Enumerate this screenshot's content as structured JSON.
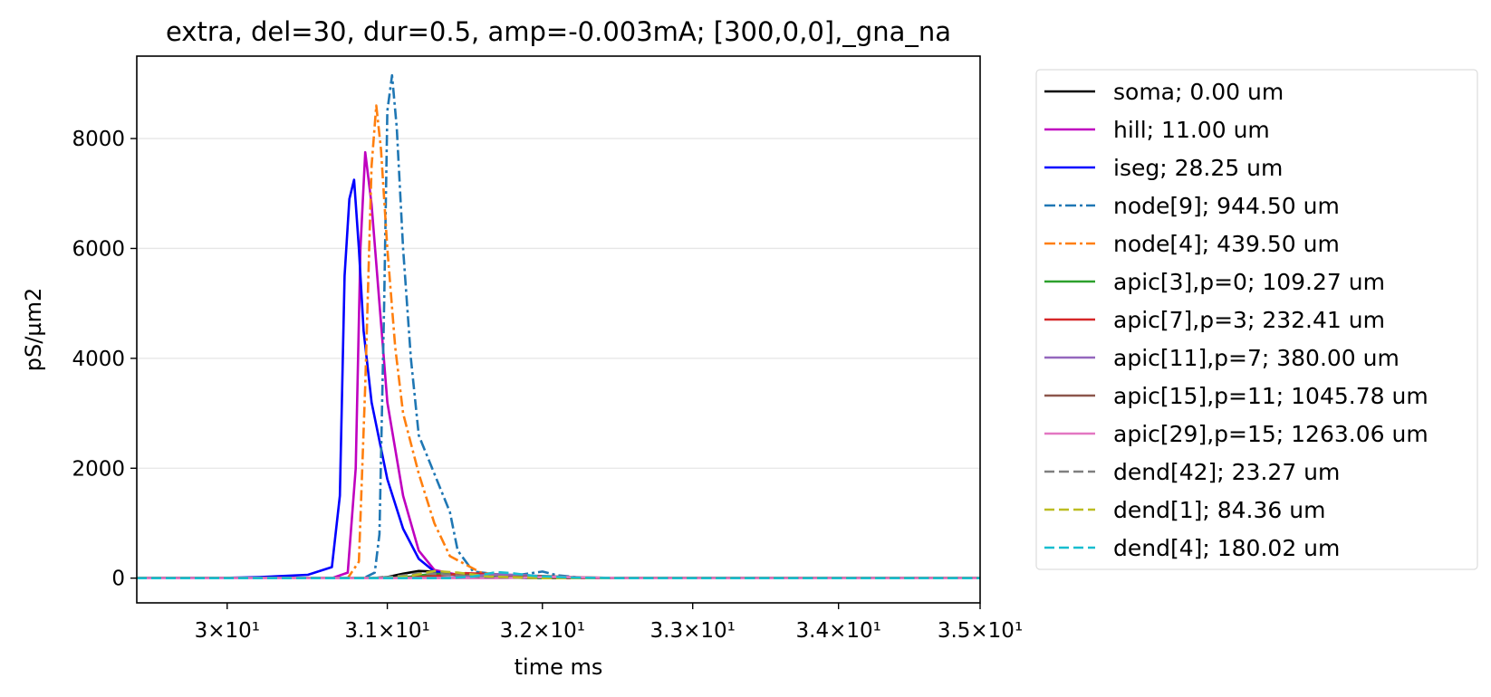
{
  "chart_data": {
    "type": "line",
    "title": "extra, del=30, dur=0.5, amp=-0.003mA; [300,0,0],_gna_na",
    "xlabel": "time ms",
    "ylabel": "pS/µm2",
    "xscale": "log",
    "xlim": [
      29.45,
      35.0
    ],
    "ylim": [
      -450,
      9500
    ],
    "xticks": [
      {
        "value": 30,
        "label": "3×10¹"
      },
      {
        "value": 31,
        "label": "3.1×10¹"
      },
      {
        "value": 32,
        "label": "3.2×10¹"
      },
      {
        "value": 33,
        "label": "3.3×10¹"
      },
      {
        "value": 34,
        "label": "3.4×10¹"
      },
      {
        "value": 35,
        "label": "3.5×10¹"
      }
    ],
    "yticks": [
      0,
      2000,
      4000,
      6000,
      8000
    ],
    "grid": "horizontal",
    "legend_position": "outside-right",
    "series": [
      {
        "name": "soma; 0.00 um",
        "color": "#000000",
        "dash": "solid",
        "points": [
          [
            29.45,
            0
          ],
          [
            30.9,
            0
          ],
          [
            31.0,
            20
          ],
          [
            31.1,
            80
          ],
          [
            31.2,
            130
          ],
          [
            31.3,
            120
          ],
          [
            31.4,
            80
          ],
          [
            31.6,
            20
          ],
          [
            32.0,
            0
          ],
          [
            35.0,
            0
          ]
        ]
      },
      {
        "name": "hill; 11.00 um",
        "color": "#bf00bf",
        "dash": "solid",
        "points": [
          [
            29.45,
            0
          ],
          [
            30.65,
            0
          ],
          [
            30.75,
            100
          ],
          [
            30.8,
            2000
          ],
          [
            30.83,
            6000
          ],
          [
            30.86,
            7750
          ],
          [
            30.9,
            6800
          ],
          [
            30.95,
            5000
          ],
          [
            31.0,
            3200
          ],
          [
            31.1,
            1500
          ],
          [
            31.2,
            500
          ],
          [
            31.3,
            150
          ],
          [
            31.5,
            30
          ],
          [
            32.0,
            0
          ],
          [
            35.0,
            0
          ]
        ]
      },
      {
        "name": "iseg; 28.25 um",
        "color": "#0000ff",
        "dash": "solid",
        "points": [
          [
            29.45,
            0
          ],
          [
            30.0,
            5
          ],
          [
            30.2,
            20
          ],
          [
            30.5,
            60
          ],
          [
            30.65,
            200
          ],
          [
            30.7,
            1500
          ],
          [
            30.73,
            5500
          ],
          [
            30.76,
            6900
          ],
          [
            30.79,
            7250
          ],
          [
            30.82,
            6000
          ],
          [
            30.85,
            4500
          ],
          [
            30.9,
            3200
          ],
          [
            31.0,
            1800
          ],
          [
            31.1,
            900
          ],
          [
            31.2,
            350
          ],
          [
            31.3,
            120
          ],
          [
            31.5,
            30
          ],
          [
            32.0,
            0
          ],
          [
            35.0,
            0
          ]
        ]
      },
      {
        "name": "node[9]; 944.50 um",
        "color": "#1f77b4",
        "dash": "dashdot",
        "points": [
          [
            29.45,
            0
          ],
          [
            30.85,
            0
          ],
          [
            30.92,
            100
          ],
          [
            30.95,
            800
          ],
          [
            30.98,
            5000
          ],
          [
            31.0,
            8500
          ],
          [
            31.03,
            9150
          ],
          [
            31.06,
            8200
          ],
          [
            31.1,
            6000
          ],
          [
            31.15,
            4000
          ],
          [
            31.2,
            2600
          ],
          [
            31.3,
            1900
          ],
          [
            31.4,
            1200
          ],
          [
            31.45,
            500
          ],
          [
            31.55,
            120
          ],
          [
            31.8,
            40
          ],
          [
            32.0,
            120
          ],
          [
            32.1,
            50
          ],
          [
            32.3,
            0
          ],
          [
            35.0,
            0
          ]
        ]
      },
      {
        "name": "node[4]; 439.50 um",
        "color": "#ff7f0e",
        "dash": "dashdot",
        "points": [
          [
            29.45,
            0
          ],
          [
            30.75,
            0
          ],
          [
            30.82,
            300
          ],
          [
            30.86,
            3500
          ],
          [
            30.9,
            7500
          ],
          [
            30.93,
            8600
          ],
          [
            30.96,
            7800
          ],
          [
            31.0,
            6000
          ],
          [
            31.05,
            4200
          ],
          [
            31.1,
            3000
          ],
          [
            31.2,
            1900
          ],
          [
            31.3,
            1000
          ],
          [
            31.4,
            400
          ],
          [
            31.6,
            100
          ],
          [
            31.8,
            40
          ],
          [
            32.0,
            0
          ],
          [
            35.0,
            0
          ]
        ]
      },
      {
        "name": "apic[3],p=0; 109.27 um",
        "color": "#2ca02c",
        "dash": "solid",
        "points": [
          [
            29.45,
            0
          ],
          [
            31.0,
            0
          ],
          [
            31.15,
            30
          ],
          [
            31.3,
            80
          ],
          [
            31.45,
            60
          ],
          [
            31.7,
            20
          ],
          [
            32.0,
            0
          ],
          [
            35.0,
            0
          ]
        ]
      },
      {
        "name": "apic[7],p=3; 232.41 um",
        "color": "#d62728",
        "dash": "solid",
        "points": [
          [
            29.45,
            0
          ],
          [
            31.1,
            0
          ],
          [
            31.3,
            40
          ],
          [
            31.5,
            90
          ],
          [
            31.7,
            70
          ],
          [
            32.0,
            15
          ],
          [
            32.3,
            0
          ],
          [
            35.0,
            0
          ]
        ]
      },
      {
        "name": "apic[11],p=7; 380.00 um",
        "color": "#9467bd",
        "dash": "solid",
        "points": [
          [
            29.45,
            0
          ],
          [
            31.3,
            0
          ],
          [
            31.5,
            30
          ],
          [
            31.7,
            70
          ],
          [
            31.9,
            50
          ],
          [
            32.2,
            10
          ],
          [
            32.5,
            0
          ],
          [
            35.0,
            0
          ]
        ]
      },
      {
        "name": "apic[15],p=11; 1045.78 um",
        "color": "#8c564b",
        "dash": "solid",
        "points": [
          [
            29.45,
            0
          ],
          [
            31.6,
            0
          ],
          [
            31.8,
            20
          ],
          [
            32.0,
            40
          ],
          [
            32.2,
            20
          ],
          [
            32.5,
            0
          ],
          [
            35.0,
            0
          ]
        ]
      },
      {
        "name": "apic[29],p=15; 1263.06 um",
        "color": "#e377c2",
        "dash": "solid",
        "points": [
          [
            29.45,
            0
          ],
          [
            31.7,
            0
          ],
          [
            31.9,
            10
          ],
          [
            32.1,
            25
          ],
          [
            32.3,
            10
          ],
          [
            32.6,
            0
          ],
          [
            35.0,
            0
          ]
        ]
      },
      {
        "name": "dend[42]; 23.27 um",
        "color": "#7f7f7f",
        "dash": "dashed",
        "points": [
          [
            29.45,
            0
          ],
          [
            30.9,
            0
          ],
          [
            31.05,
            30
          ],
          [
            31.2,
            90
          ],
          [
            31.35,
            70
          ],
          [
            31.6,
            20
          ],
          [
            32.0,
            0
          ],
          [
            35.0,
            0
          ]
        ]
      },
      {
        "name": "dend[1]; 84.36 um",
        "color": "#bcbd22",
        "dash": "dashed",
        "points": [
          [
            29.45,
            0
          ],
          [
            31.0,
            0
          ],
          [
            31.15,
            40
          ],
          [
            31.3,
            130
          ],
          [
            31.45,
            100
          ],
          [
            31.65,
            30
          ],
          [
            32.0,
            0
          ],
          [
            35.0,
            0
          ]
        ]
      },
      {
        "name": "dend[4]; 180.02 um",
        "color": "#17becf",
        "dash": "dashed",
        "points": [
          [
            29.45,
            0
          ],
          [
            31.4,
            0
          ],
          [
            31.55,
            30
          ],
          [
            31.7,
            110
          ],
          [
            31.8,
            90
          ],
          [
            31.95,
            40
          ],
          [
            32.2,
            10
          ],
          [
            32.5,
            0
          ],
          [
            35.0,
            0
          ]
        ]
      }
    ]
  }
}
